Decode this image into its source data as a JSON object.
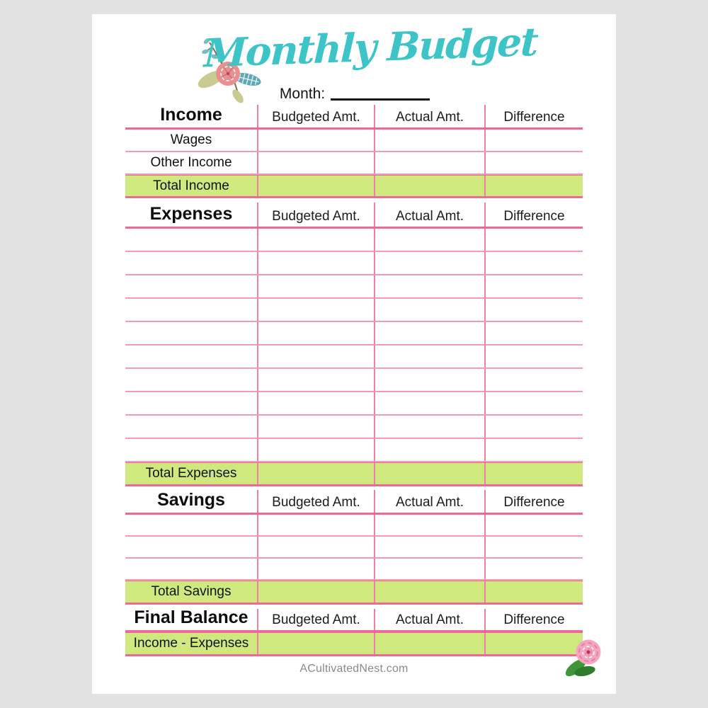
{
  "page": {
    "title": "Monthly Budget",
    "month_label": "Month:",
    "footer": "ACultivatedNest.com"
  },
  "colors": {
    "title_teal": "#3cc4c6",
    "rule_pink": "#ec6a95",
    "total_row_green": "#cfe97f"
  },
  "table": {
    "value_columns": [
      "Budgeted Amt.",
      "Actual Amt.",
      "Difference"
    ],
    "sections": [
      {
        "title": "Income",
        "rows": [
          "Wages",
          "Other Income"
        ],
        "blank_rows": 0,
        "total_label": "Total Income"
      },
      {
        "title": "Expenses",
        "rows": [],
        "blank_rows": 10,
        "total_label": "Total Expenses"
      },
      {
        "title": "Savings",
        "rows": [],
        "blank_rows": 3,
        "total_label": "Total Savings"
      },
      {
        "title": "Final Balance",
        "rows": [],
        "blank_rows": 0,
        "total_label": "Income - Expenses"
      }
    ]
  },
  "icons": {
    "header_decoration": "floral-bouquet-icon",
    "corner_decoration": "rose-icon"
  }
}
